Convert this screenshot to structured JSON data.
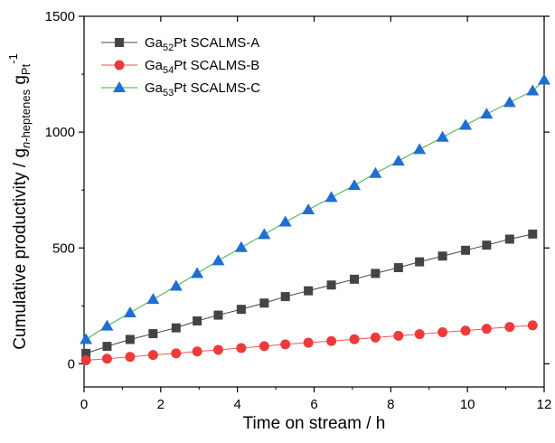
{
  "chart_data": {
    "type": "scatter",
    "title": "",
    "xlabel": "Time on stream / h",
    "ylabel": {
      "main": "Cumulative productivity / g",
      "sub1": "n",
      "sub2": "-heptenes",
      "mid": " g",
      "sub3": "Pt",
      "sup": "-1"
    },
    "xlim": [
      0,
      12
    ],
    "ylim": [
      -100,
      1500
    ],
    "xticks": [
      0,
      2,
      4,
      6,
      8,
      10,
      12
    ],
    "yticks": [
      0,
      500,
      1000,
      1500
    ],
    "grid": false,
    "legend_position": "top-left",
    "series": [
      {
        "name": "Ga52Pt SCALMS-A",
        "label_parts": [
          "Ga",
          "52",
          "Pt SCALMS-A"
        ],
        "marker": "square",
        "marker_color": "#444444",
        "line_color": "#444444",
        "x": [
          0.05,
          0.6,
          1.2,
          1.8,
          2.4,
          2.95,
          3.5,
          4.1,
          4.7,
          5.25,
          5.85,
          6.45,
          7.05,
          7.6,
          8.2,
          8.75,
          9.35,
          9.95,
          10.5,
          11.1,
          11.7
        ],
        "y": [
          45,
          75,
          105,
          130,
          155,
          185,
          210,
          235,
          262,
          290,
          315,
          340,
          365,
          390,
          415,
          440,
          465,
          490,
          512,
          538,
          560
        ]
      },
      {
        "name": "Ga54Pt SCALMS-B",
        "label_parts": [
          "Ga",
          "54",
          "Pt SCALMS-B"
        ],
        "marker": "circle",
        "marker_color": "#ee3a3a",
        "line_color": "#ee5555",
        "x": [
          0.05,
          0.6,
          1.2,
          1.8,
          2.4,
          2.95,
          3.5,
          4.1,
          4.7,
          5.25,
          5.85,
          6.45,
          7.05,
          7.6,
          8.2,
          8.75,
          9.35,
          9.95,
          10.5,
          11.1,
          11.7
        ],
        "y": [
          15,
          22,
          30,
          38,
          45,
          53,
          60,
          68,
          76,
          84,
          91,
          98,
          106,
          113,
          121,
          128,
          136,
          143,
          151,
          159,
          166
        ]
      },
      {
        "name": "Ga53Pt SCALMS-C",
        "label_parts": [
          "Ga",
          "53",
          "Pt SCALMS-C"
        ],
        "marker": "triangle",
        "marker_color": "#1f6ed4",
        "line_color": "#3fae3f",
        "x": [
          0.05,
          0.6,
          1.2,
          1.8,
          2.4,
          2.95,
          3.5,
          4.1,
          4.7,
          5.25,
          5.85,
          6.45,
          7.05,
          7.6,
          8.2,
          8.75,
          9.35,
          9.95,
          10.5,
          11.1,
          11.7,
          12.0
        ],
        "y": [
          105,
          163,
          220,
          278,
          335,
          390,
          445,
          502,
          558,
          612,
          665,
          718,
          770,
          822,
          875,
          925,
          978,
          1030,
          1078,
          1128,
          1178,
          1225
        ]
      }
    ]
  }
}
